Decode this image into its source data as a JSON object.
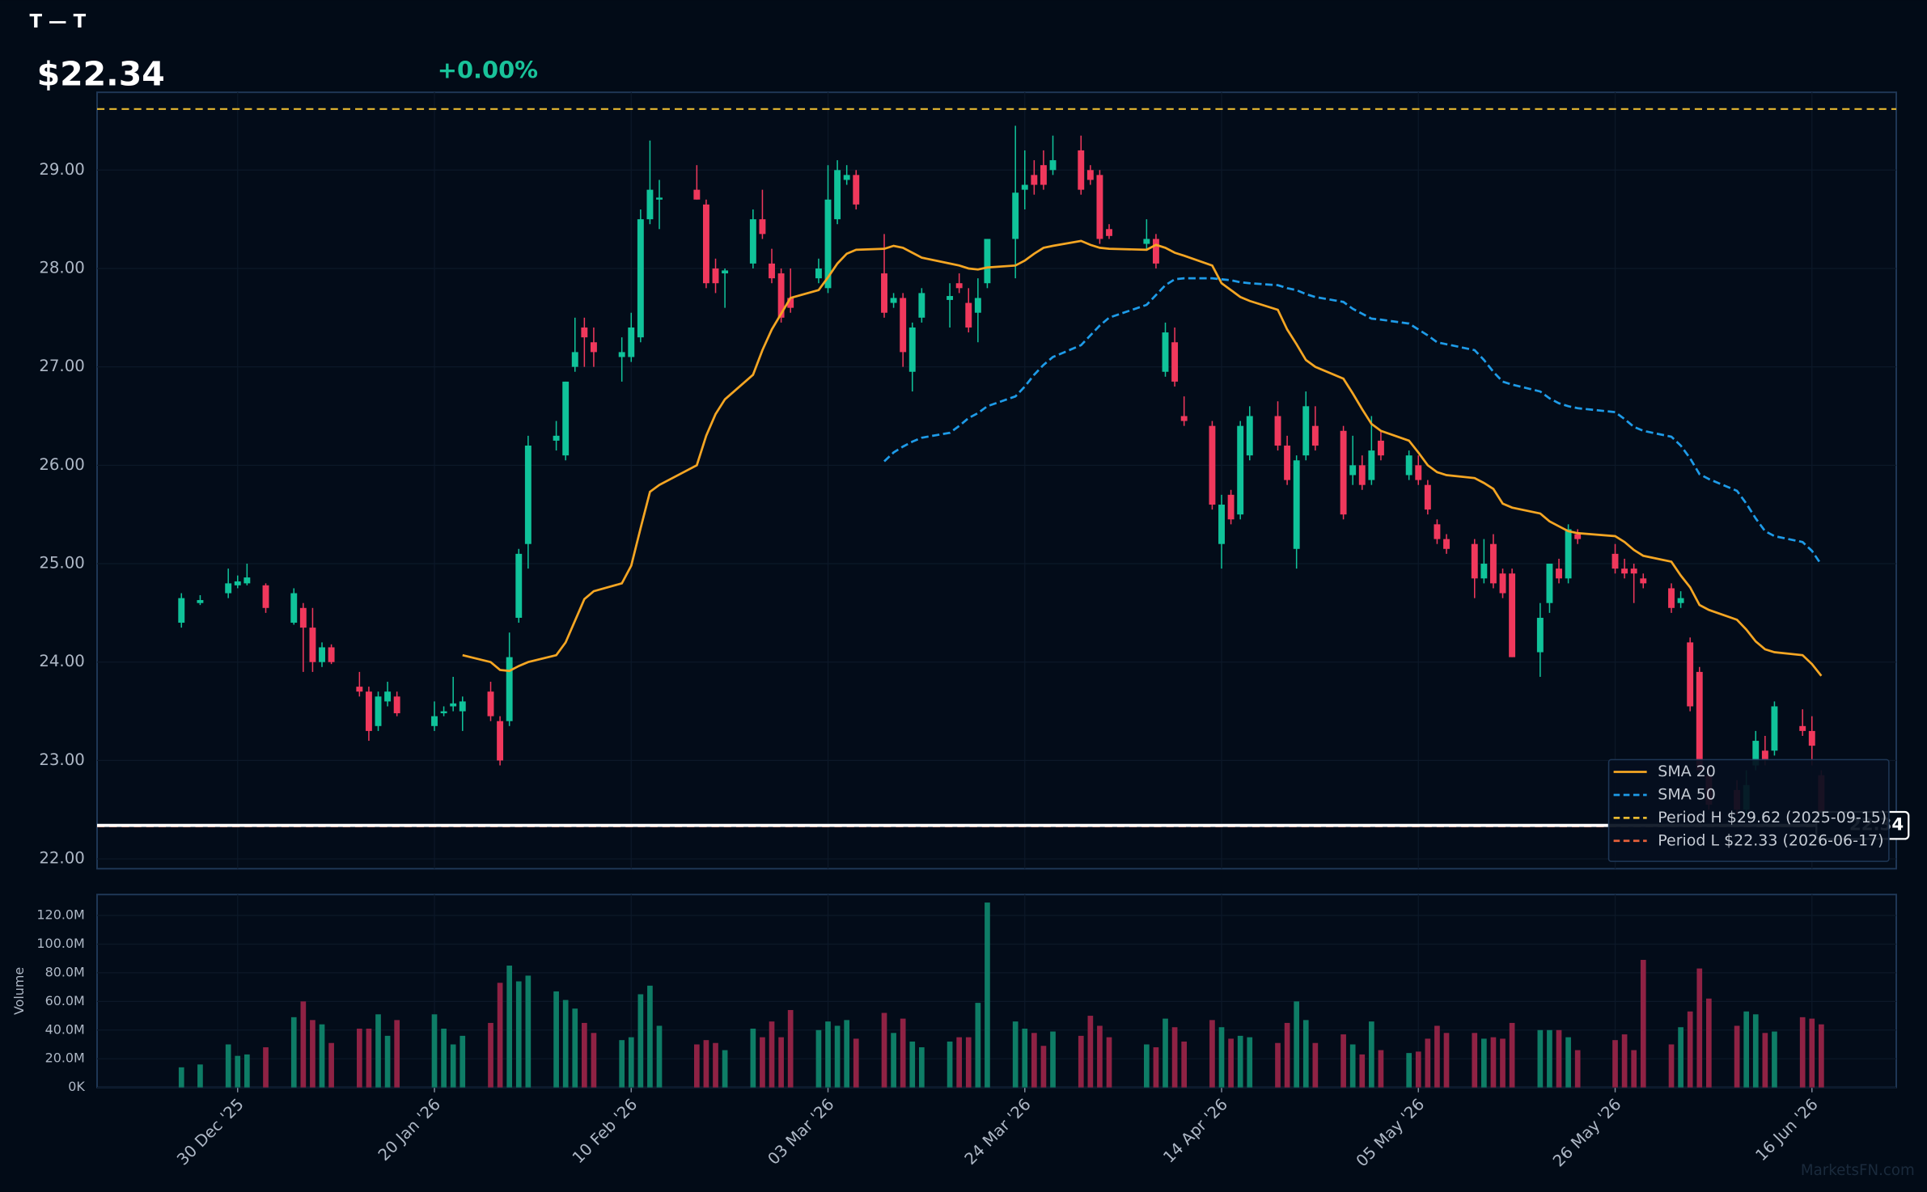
{
  "header": {
    "symbol": "T — T",
    "price": "$22.34",
    "change": "+0.00%"
  },
  "watermark": "MarketsFN.com",
  "chart_data": [
    {
      "type": "candlestick",
      "x": [
        "2025-12-24",
        "2025-12-26",
        "2025-12-29",
        "2025-12-30",
        "2025-12-31",
        "2026-01-02",
        "2026-01-05",
        "2026-01-06",
        "2026-01-07",
        "2026-01-08",
        "2026-01-09",
        "2026-01-12",
        "2026-01-13",
        "2026-01-14",
        "2026-01-15",
        "2026-01-16",
        "2026-01-20",
        "2026-01-21",
        "2026-01-22",
        "2026-01-23",
        "2026-01-26",
        "2026-01-27",
        "2026-01-28",
        "2026-01-29",
        "2026-01-30",
        "2026-02-02",
        "2026-02-03",
        "2026-02-04",
        "2026-02-05",
        "2026-02-06",
        "2026-02-09",
        "2026-02-10",
        "2026-02-11",
        "2026-02-12",
        "2026-02-13",
        "2026-02-17",
        "2026-02-18",
        "2026-02-19",
        "2026-02-20",
        "2026-02-23",
        "2026-02-24",
        "2026-02-25",
        "2026-02-26",
        "2026-02-27",
        "2026-03-02",
        "2026-03-03",
        "2026-03-04",
        "2026-03-05",
        "2026-03-06",
        "2026-03-09",
        "2026-03-10",
        "2026-03-11",
        "2026-03-12",
        "2026-03-13",
        "2026-03-16",
        "2026-03-17",
        "2026-03-18",
        "2026-03-19",
        "2026-03-20",
        "2026-03-23",
        "2026-03-24",
        "2026-03-25",
        "2026-03-26",
        "2026-03-27",
        "2026-03-30",
        "2026-03-31",
        "2026-04-01",
        "2026-04-02",
        "2026-04-06",
        "2026-04-07",
        "2026-04-08",
        "2026-04-09",
        "2026-04-10",
        "2026-04-13",
        "2026-04-14",
        "2026-04-15",
        "2026-04-16",
        "2026-04-17",
        "2026-04-20",
        "2026-04-21",
        "2026-04-22",
        "2026-04-23",
        "2026-04-24",
        "2026-04-27",
        "2026-04-28",
        "2026-04-29",
        "2026-04-30",
        "2026-05-01",
        "2026-05-04",
        "2026-05-05",
        "2026-05-06",
        "2026-05-07",
        "2026-05-08",
        "2026-05-11",
        "2026-05-12",
        "2026-05-13",
        "2026-05-14",
        "2026-05-15",
        "2026-05-18",
        "2026-05-19",
        "2026-05-20",
        "2026-05-21",
        "2026-05-22",
        "2026-05-26",
        "2026-05-27",
        "2026-05-28",
        "2026-05-29",
        "2026-06-01",
        "2026-06-02",
        "2026-06-03",
        "2026-06-04",
        "2026-06-05",
        "2026-06-08",
        "2026-06-09",
        "2026-06-10",
        "2026-06-11",
        "2026-06-12",
        "2026-06-15",
        "2026-06-16",
        "2026-06-17"
      ],
      "open": [
        24.4,
        24.6,
        24.7,
        24.78,
        24.8,
        24.78,
        24.4,
        24.55,
        24.35,
        24.0,
        24.15,
        23.75,
        23.7,
        23.35,
        23.6,
        23.65,
        23.35,
        23.48,
        23.55,
        23.5,
        23.7,
        23.4,
        23.4,
        24.45,
        25.2,
        26.25,
        26.1,
        27.0,
        27.4,
        27.25,
        27.1,
        27.1,
        27.3,
        28.5,
        28.7,
        28.8,
        28.65,
        28.0,
        27.95,
        28.05,
        28.5,
        28.05,
        27.95,
        27.7,
        27.9,
        27.8,
        28.5,
        28.9,
        28.95,
        27.95,
        27.65,
        27.7,
        26.95,
        27.5,
        27.68,
        27.85,
        27.65,
        27.55,
        27.85,
        28.3,
        28.8,
        28.95,
        29.05,
        29.0,
        29.2,
        29.0,
        28.95,
        28.4,
        28.25,
        28.3,
        26.95,
        27.25,
        26.5,
        26.4,
        25.2,
        25.7,
        25.5,
        26.1,
        26.5,
        26.2,
        25.15,
        26.1,
        26.4,
        26.35,
        25.9,
        26.0,
        25.85,
        26.25,
        25.9,
        26.0,
        25.8,
        25.4,
        25.25,
        25.2,
        24.85,
        25.2,
        24.9,
        24.9,
        24.1,
        24.6,
        24.95,
        24.85,
        25.3,
        25.1,
        24.95,
        24.95,
        24.85,
        24.75,
        24.6,
        24.2,
        23.9,
        22.85,
        22.7,
        22.5,
        22.95,
        23.1,
        23.1,
        23.35,
        23.3,
        22.85
      ],
      "high": [
        24.7,
        24.68,
        24.95,
        24.88,
        25.0,
        24.8,
        24.75,
        24.6,
        24.55,
        24.2,
        24.18,
        23.9,
        23.75,
        23.7,
        23.8,
        23.7,
        23.6,
        23.55,
        23.85,
        23.65,
        23.8,
        23.45,
        24.3,
        25.15,
        26.3,
        26.45,
        26.85,
        27.5,
        27.5,
        27.4,
        27.3,
        27.55,
        28.6,
        29.3,
        28.9,
        29.05,
        28.7,
        28.1,
        28.0,
        28.6,
        28.8,
        28.2,
        28.0,
        28.0,
        28.1,
        29.05,
        29.1,
        29.05,
        29.0,
        28.35,
        27.75,
        27.75,
        27.45,
        27.8,
        27.85,
        27.95,
        27.8,
        27.9,
        28.3,
        29.45,
        29.2,
        29.1,
        29.2,
        29.35,
        29.35,
        29.05,
        29.0,
        28.45,
        28.5,
        28.35,
        27.45,
        27.4,
        26.7,
        26.45,
        25.7,
        25.75,
        26.45,
        26.6,
        26.65,
        26.3,
        26.1,
        26.75,
        26.6,
        26.4,
        26.3,
        26.1,
        26.5,
        26.35,
        26.15,
        26.1,
        25.85,
        25.45,
        25.3,
        25.25,
        25.25,
        25.3,
        24.95,
        24.95,
        24.6,
        25.0,
        25.05,
        25.4,
        25.35,
        25.2,
        25.05,
        25.0,
        24.9,
        24.8,
        24.72,
        24.25,
        23.95,
        22.95,
        22.8,
        22.9,
        23.3,
        23.25,
        23.6,
        23.52,
        23.45,
        22.9
      ],
      "low": [
        24.35,
        24.58,
        24.65,
        24.75,
        24.78,
        24.5,
        24.38,
        23.9,
        23.9,
        23.95,
        23.98,
        23.65,
        23.2,
        23.3,
        23.55,
        23.45,
        23.3,
        23.45,
        23.5,
        23.3,
        23.4,
        22.95,
        23.35,
        24.4,
        24.95,
        26.15,
        26.05,
        26.95,
        27.0,
        27.0,
        26.85,
        27.05,
        27.25,
        28.45,
        28.4,
        28.7,
        27.8,
        27.75,
        27.6,
        28.0,
        28.3,
        27.85,
        27.45,
        27.55,
        27.85,
        27.75,
        28.45,
        28.85,
        28.6,
        27.5,
        27.6,
        27.0,
        26.75,
        27.45,
        27.4,
        27.75,
        27.35,
        27.25,
        27.8,
        27.9,
        28.6,
        28.75,
        28.8,
        28.95,
        28.75,
        28.85,
        28.25,
        28.3,
        28.2,
        28.0,
        26.9,
        26.8,
        26.4,
        25.55,
        24.95,
        25.4,
        25.45,
        26.05,
        26.15,
        25.8,
        24.95,
        26.05,
        26.15,
        25.45,
        25.8,
        25.75,
        25.8,
        26.05,
        25.85,
        25.8,
        25.5,
        25.2,
        25.1,
        24.65,
        24.8,
        24.75,
        24.65,
        24.05,
        23.85,
        24.5,
        24.8,
        24.8,
        25.2,
        24.9,
        24.85,
        24.6,
        24.75,
        24.5,
        24.55,
        23.5,
        22.9,
        22.5,
        22.45,
        22.45,
        22.9,
        22.95,
        23.05,
        23.25,
        22.95,
        22.33
      ],
      "close": [
        24.65,
        24.63,
        24.8,
        24.82,
        24.86,
        24.55,
        24.7,
        24.35,
        24.0,
        24.15,
        24.0,
        23.7,
        23.3,
        23.65,
        23.7,
        23.48,
        23.45,
        23.5,
        23.58,
        23.6,
        23.45,
        23.0,
        24.05,
        25.1,
        26.2,
        26.3,
        26.85,
        27.15,
        27.3,
        27.15,
        27.15,
        27.4,
        28.5,
        28.8,
        28.72,
        28.7,
        27.85,
        27.85,
        27.98,
        28.5,
        28.35,
        27.9,
        27.5,
        27.6,
        28.0,
        28.7,
        29.0,
        28.95,
        28.65,
        27.55,
        27.7,
        27.15,
        27.4,
        27.75,
        27.72,
        27.8,
        27.4,
        27.7,
        28.3,
        28.77,
        28.85,
        28.85,
        28.85,
        29.1,
        28.8,
        28.9,
        28.3,
        28.33,
        28.3,
        28.05,
        27.35,
        26.85,
        26.45,
        25.6,
        25.6,
        25.45,
        26.4,
        26.5,
        26.2,
        25.85,
        26.05,
        26.6,
        26.2,
        25.5,
        26.0,
        25.8,
        26.15,
        26.1,
        26.1,
        25.85,
        25.55,
        25.25,
        25.15,
        24.85,
        25.0,
        24.8,
        24.7,
        24.05,
        24.45,
        25.0,
        24.85,
        25.35,
        25.25,
        24.95,
        24.9,
        24.9,
        24.8,
        24.55,
        24.65,
        23.55,
        22.9,
        22.55,
        22.5,
        22.75,
        23.2,
        23.0,
        23.55,
        23.3,
        23.15,
        22.34
      ],
      "up_color": "#10c39a",
      "down_color": "#f0385c",
      "series": [
        {
          "name": "SMA 20",
          "color": "#f5a623",
          "dashed": false,
          "values": [
            null,
            null,
            null,
            null,
            null,
            null,
            null,
            null,
            null,
            null,
            null,
            null,
            null,
            null,
            null,
            null,
            null,
            null,
            null,
            24.07,
            24.0,
            23.92,
            23.91,
            23.96,
            24.0,
            24.07,
            24.2,
            24.42,
            24.64,
            24.72,
            24.8,
            24.98,
            25.36,
            25.73,
            25.8,
            26.0,
            26.3,
            26.52,
            26.67,
            26.92,
            27.17,
            27.38,
            27.54,
            27.7,
            27.78,
            27.91,
            28.05,
            28.15,
            28.19,
            28.2,
            28.23,
            28.21,
            28.16,
            28.11,
            28.05,
            28.03,
            28.0,
            27.99,
            28.01,
            28.03,
            28.08,
            28.15,
            28.21,
            28.23,
            28.28,
            28.24,
            28.21,
            28.2,
            28.19,
            28.24,
            28.21,
            28.16,
            28.13,
            28.03,
            27.85,
            27.78,
            27.71,
            27.67,
            27.58,
            27.38,
            27.23,
            27.07,
            27.0,
            26.88,
            26.73,
            26.57,
            26.42,
            26.35,
            26.25,
            26.13,
            26.0,
            25.93,
            25.9,
            25.87,
            25.82,
            25.76,
            25.61,
            25.57,
            25.51,
            25.43,
            25.38,
            25.33,
            25.31,
            25.28,
            25.22,
            25.14,
            25.08,
            25.02,
            24.88,
            24.76,
            24.58,
            24.53,
            24.43,
            24.33,
            24.21,
            24.13,
            24.1,
            24.07,
            23.98,
            23.86
          ]
        },
        {
          "name": "SMA 50",
          "color": "#1e9be8",
          "dashed": true,
          "values": [
            null,
            null,
            null,
            null,
            null,
            null,
            null,
            null,
            null,
            null,
            null,
            null,
            null,
            null,
            null,
            null,
            null,
            null,
            null,
            null,
            null,
            null,
            null,
            null,
            null,
            null,
            null,
            null,
            null,
            null,
            null,
            null,
            null,
            null,
            null,
            null,
            null,
            null,
            null,
            null,
            null,
            null,
            null,
            null,
            null,
            null,
            null,
            null,
            null,
            26.04,
            26.13,
            26.19,
            26.24,
            26.28,
            26.33,
            26.4,
            26.48,
            26.53,
            26.6,
            26.7,
            26.8,
            26.92,
            27.02,
            27.1,
            27.22,
            27.32,
            27.42,
            27.5,
            27.63,
            27.73,
            27.83,
            27.89,
            27.9,
            27.9,
            27.89,
            27.88,
            27.86,
            27.85,
            27.83,
            27.8,
            27.78,
            27.74,
            27.71,
            27.66,
            27.59,
            27.54,
            27.49,
            27.48,
            27.44,
            27.38,
            27.32,
            27.25,
            27.23,
            27.17,
            27.07,
            26.95,
            26.85,
            26.82,
            26.75,
            26.68,
            26.63,
            26.6,
            26.58,
            26.54,
            26.47,
            26.39,
            26.35,
            26.29,
            26.2,
            26.07,
            25.91,
            25.86,
            25.74,
            25.61,
            25.46,
            25.33,
            25.28,
            25.22,
            25.13,
            24.99
          ]
        }
      ],
      "reference_lines": [
        {
          "name": "Period H $29.62 (2025-09-15)",
          "value": 29.62,
          "color": "#e8b931"
        },
        {
          "name": "Period L $22.33 (2026-06-17)",
          "value": 22.33,
          "color": "#e8603a"
        }
      ],
      "last_price": 22.34,
      "last_price_color": "#ffffff",
      "legend": "lower right",
      "grid": true,
      "xlim": [
        "2025-12-15",
        "2026-06-25"
      ],
      "xticks": [
        {
          "value": "2025-12-30",
          "label": "30 Dec '25"
        },
        {
          "value": "2026-01-20",
          "label": "20 Jan '26"
        },
        {
          "value": "2026-02-10",
          "label": "10 Feb '26"
        },
        {
          "value": "2026-03-03",
          "label": "03 Mar '26"
        },
        {
          "value": "2026-03-24",
          "label": "24 Mar '26"
        },
        {
          "value": "2026-04-14",
          "label": "14 Apr '26"
        },
        {
          "value": "2026-05-05",
          "label": "05 May '26"
        },
        {
          "value": "2026-05-26",
          "label": "26 May '26"
        },
        {
          "value": "2026-06-16",
          "label": "16 Jun '26"
        }
      ],
      "ylim": [
        21.9,
        29.79
      ],
      "yticks": [
        {
          "value": 22,
          "label": "22.00"
        },
        {
          "value": 23,
          "label": "23.00"
        },
        {
          "value": 24,
          "label": "24.00"
        },
        {
          "value": 25,
          "label": "25.00"
        },
        {
          "value": 26,
          "label": "26.00"
        },
        {
          "value": 27,
          "label": "27.00"
        },
        {
          "value": 28,
          "label": "28.00"
        },
        {
          "value": 29,
          "label": "29.00"
        }
      ]
    },
    {
      "type": "bar",
      "ylabel": "Volume",
      "up_color": "#0e7d66",
      "down_color": "#8f2244",
      "values": [
        14,
        16,
        30,
        22,
        23,
        28,
        49,
        60,
        47,
        44,
        31,
        41,
        41,
        51,
        36,
        47,
        51,
        41,
        30,
        36,
        45,
        73,
        85,
        74,
        78,
        67,
        61,
        55,
        45,
        38,
        33,
        35,
        65,
        71,
        43,
        30,
        33,
        31,
        26,
        41,
        35,
        46,
        35,
        54,
        40,
        46,
        43,
        47,
        34,
        52,
        38,
        48,
        32,
        28,
        32,
        35,
        35,
        59,
        129,
        46,
        41,
        38,
        29,
        39,
        36,
        50,
        43,
        35,
        30,
        28,
        48,
        42,
        32,
        47,
        42,
        34,
        36,
        35,
        31,
        45,
        60,
        47,
        31,
        37,
        30,
        23,
        46,
        26,
        24,
        25,
        34,
        43,
        38,
        38,
        34,
        35,
        34,
        45,
        40,
        40,
        40,
        35,
        26,
        33,
        37,
        26,
        89,
        30,
        42,
        53,
        83,
        62,
        43,
        53,
        51,
        38,
        39,
        49,
        48,
        44
      ],
      "ylim": [
        0,
        134.6
      ],
      "yticks": [
        {
          "value": 0,
          "label": "0K"
        },
        {
          "value": 20,
          "label": "20.0M"
        },
        {
          "value": 40,
          "label": "40.0M"
        },
        {
          "value": 60,
          "label": "60.0M"
        },
        {
          "value": 80,
          "label": "80.0M"
        },
        {
          "value": 100,
          "label": "100.0M"
        },
        {
          "value": 120,
          "label": "120.0M"
        }
      ]
    }
  ]
}
